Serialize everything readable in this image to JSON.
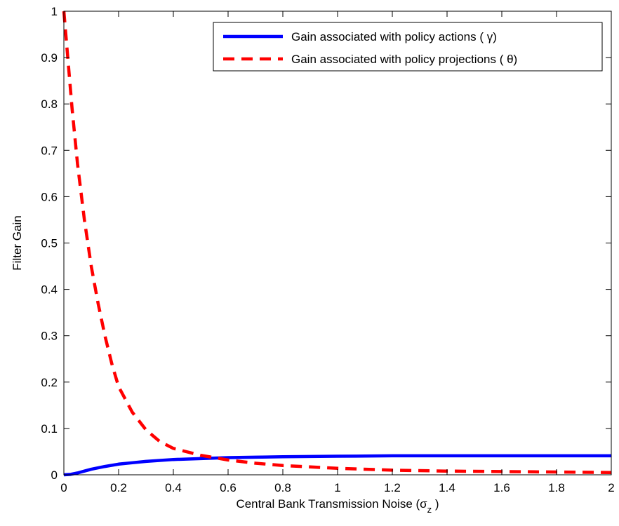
{
  "chart_data": {
    "type": "line",
    "xlabel": "Central Bank Transmission Noise (σ",
    "xlabel_sub": "z",
    "xlabel_close": " )",
    "ylabel": "Filter Gain",
    "xlim": [
      0,
      2
    ],
    "ylim": [
      0,
      1
    ],
    "grid": false,
    "legend_placement": "top-right",
    "x_ticks": [
      0,
      0.2,
      0.4,
      0.6,
      0.8,
      1,
      1.2,
      1.4,
      1.6,
      1.8,
      2
    ],
    "x_tick_labels": [
      "0",
      "0.2",
      "0.4",
      "0.6",
      "0.8",
      "1",
      "1.2",
      "1.4",
      "1.6",
      "1.8",
      "2"
    ],
    "y_ticks": [
      0,
      0.1,
      0.2,
      0.3,
      0.4,
      0.5,
      0.6,
      0.7,
      0.8,
      0.9,
      1
    ],
    "y_tick_labels": [
      "0",
      "0.1",
      "0.2",
      "0.3",
      "0.4",
      "0.5",
      "0.6",
      "0.7",
      "0.8",
      "0.9",
      "1"
    ],
    "series": [
      {
        "name": "Gain associated with policy actions ( γ)",
        "color": "#0000ff",
        "style": "solid",
        "x": [
          0,
          0.025,
          0.05,
          0.075,
          0.1,
          0.15,
          0.2,
          0.25,
          0.3,
          0.4,
          0.5,
          0.6,
          0.7,
          0.8,
          1.0,
          1.2,
          1.4,
          1.6,
          1.8,
          2.0
        ],
        "y": [
          0,
          0.001,
          0.004,
          0.008,
          0.012,
          0.018,
          0.023,
          0.026,
          0.029,
          0.033,
          0.035,
          0.037,
          0.038,
          0.039,
          0.04,
          0.041,
          0.041,
          0.041,
          0.041,
          0.041
        ]
      },
      {
        "name": "Gain associated with policy projections ( θ)",
        "color": "#ff0000",
        "style": "dashed",
        "x": [
          0,
          0.01,
          0.02,
          0.03,
          0.05,
          0.075,
          0.1,
          0.125,
          0.15,
          0.175,
          0.2,
          0.25,
          0.3,
          0.35,
          0.4,
          0.5,
          0.6,
          0.7,
          0.8,
          1.0,
          1.2,
          1.4,
          1.6,
          1.8,
          2.0
        ],
        "y": [
          1.0,
          0.93,
          0.86,
          0.79,
          0.67,
          0.55,
          0.45,
          0.37,
          0.3,
          0.24,
          0.19,
          0.135,
          0.097,
          0.072,
          0.057,
          0.042,
          0.032,
          0.025,
          0.02,
          0.014,
          0.01,
          0.008,
          0.007,
          0.006,
          0.005
        ]
      }
    ]
  }
}
